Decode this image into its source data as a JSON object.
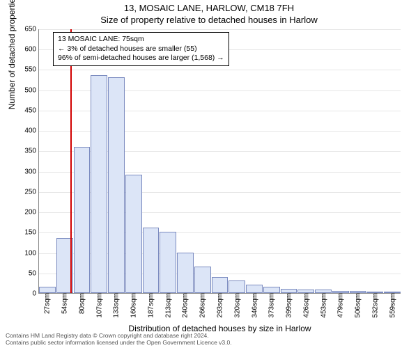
{
  "title_line1": "13, MOSAIC LANE, HARLOW, CM18 7FH",
  "title_line2": "Size of property relative to detached houses in Harlow",
  "chart": {
    "type": "histogram",
    "ylabel": "Number of detached properties",
    "xlabel": "Distribution of detached houses by size in Harlow",
    "ylim": [
      0,
      650
    ],
    "ytick_step": 50,
    "bar_fill": "#dce5f7",
    "bar_border": "#7a8abf",
    "grid_color": "#e6e6e6",
    "axis_color": "#888888",
    "background_color": "#ffffff",
    "refline_color": "#d10000",
    "refline_x": 75,
    "x_start": 27,
    "x_step": 26.6,
    "x_count": 21,
    "x_unit": "sqm",
    "x_ticks": [
      27,
      54,
      80,
      107,
      133,
      160,
      187,
      213,
      240,
      266,
      293,
      320,
      346,
      373,
      399,
      426,
      453,
      479,
      506,
      532,
      559
    ],
    "bars": [
      15,
      135,
      360,
      535,
      530,
      290,
      160,
      150,
      100,
      65,
      40,
      30,
      20,
      15,
      10,
      8,
      8,
      5,
      5,
      3,
      3
    ]
  },
  "infobox": {
    "line1": "13 MOSAIC LANE: 75sqm",
    "line2": "← 3% of detached houses are smaller (55)",
    "line3": "96% of semi-detached houses are larger (1,568) →"
  },
  "footer": {
    "line1": "Contains HM Land Registry data © Crown copyright and database right 2024.",
    "line2": "Contains public sector information licensed under the Open Government Licence v3.0."
  }
}
